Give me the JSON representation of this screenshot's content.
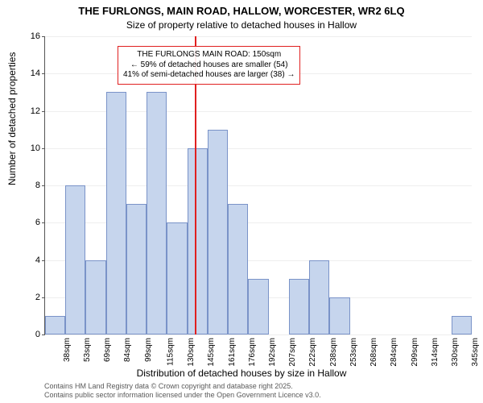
{
  "titles": {
    "main": "THE FURLONGS, MAIN ROAD, HALLOW, WORCESTER, WR2 6LQ",
    "sub": "Size of property relative to detached houses in Hallow"
  },
  "chart": {
    "type": "histogram",
    "bar_fill": "#c6d5ed",
    "bar_border": "#7a93c8",
    "background_color": "#ffffff",
    "grid_color": "#eeeeee",
    "axis_color": "#555555",
    "ref_line_color": "#e02020",
    "ylim": [
      0,
      16
    ],
    "ytick_step": 2,
    "yticks": [
      0,
      2,
      4,
      6,
      8,
      10,
      12,
      14,
      16
    ],
    "categories": [
      "38sqm",
      "53sqm",
      "69sqm",
      "84sqm",
      "99sqm",
      "115sqm",
      "130sqm",
      "145sqm",
      "161sqm",
      "176sqm",
      "192sqm",
      "207sqm",
      "222sqm",
      "238sqm",
      "253sqm",
      "268sqm",
      "284sqm",
      "299sqm",
      "314sqm",
      "330sqm",
      "345sqm"
    ],
    "values": [
      1,
      8,
      4,
      13,
      7,
      13,
      6,
      10,
      11,
      7,
      3,
      0,
      3,
      4,
      2,
      0,
      0,
      0,
      0,
      0,
      1
    ],
    "ref_line_index": 7,
    "annotation": {
      "line1": "THE FURLONGS MAIN ROAD: 150sqm",
      "line2": "← 59% of detached houses are smaller (54)",
      "line3": "41% of semi-detached houses are larger (38) →",
      "box_border": "#e02020",
      "fontsize": 10
    },
    "ylabel": "Number of detached properties",
    "xlabel": "Distribution of detached houses by size in Hallow",
    "label_fontsize": 12,
    "title_fontsize": 13,
    "tick_fontsize": 11
  },
  "footer": {
    "line1": "Contains HM Land Registry data © Crown copyright and database right 2025.",
    "line2": "Contains public sector information licensed under the Open Government Licence v3.0."
  }
}
